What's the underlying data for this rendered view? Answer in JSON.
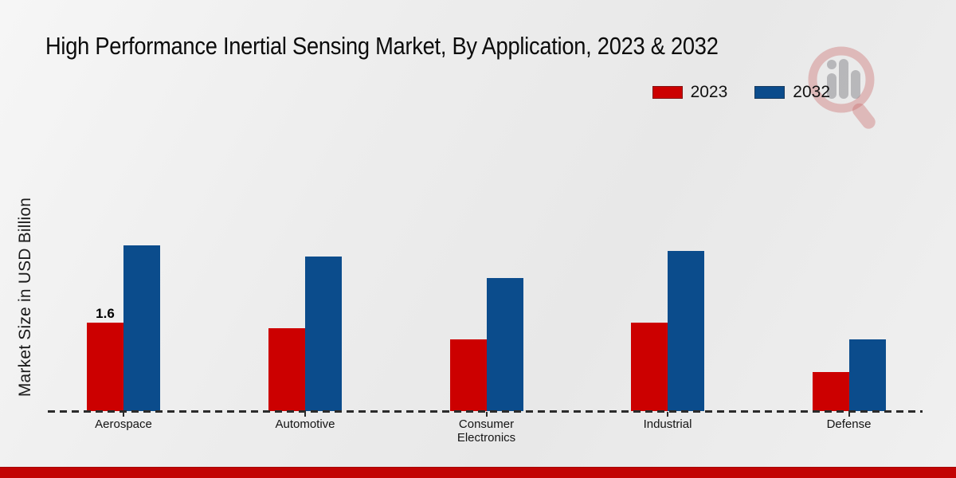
{
  "title": "High Performance Inertial Sensing Market, By Application, 2023 & 2032",
  "ylabel": "Market Size in USD Billion",
  "legend": {
    "items": [
      {
        "label": "2023",
        "color": "#cc0000"
      },
      {
        "label": "2032",
        "color": "#0b4c8c"
      }
    ]
  },
  "footer": {
    "bar_color": "#c20404"
  },
  "chart_data": {
    "type": "bar",
    "categories": [
      "Aerospace",
      "Automotive",
      "Consumer Electronics",
      "Industrial",
      "Defense"
    ],
    "series": [
      {
        "name": "2023",
        "color": "#cc0000",
        "values": [
          1.6,
          1.5,
          1.3,
          1.6,
          0.7
        ]
      },
      {
        "name": "2032",
        "color": "#0b4c8c",
        "values": [
          3.0,
          2.8,
          2.4,
          2.9,
          1.3
        ]
      }
    ],
    "title": "High Performance Inertial Sensing Market, By Application, 2023 & 2032",
    "xlabel": "",
    "ylabel": "Market Size in USD Billion",
    "ylim": [
      0,
      3.5
    ],
    "grid": false,
    "legend_position": "top-right",
    "baseline_style": "dashed",
    "data_labels": [
      {
        "category": "Aerospace",
        "series": "2023",
        "text": "1.6"
      }
    ]
  }
}
